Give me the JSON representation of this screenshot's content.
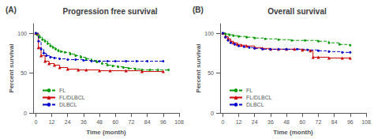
{
  "chart_data": [
    {
      "type": "step",
      "title": "Progression free survival",
      "annotations": [
        "(A)"
      ],
      "xlabel": "Time (month)",
      "ylabel": "Percent survival",
      "xlim": [
        -2,
        108
      ],
      "ylim": [
        0,
        112
      ],
      "xticks": [
        0,
        12,
        24,
        36,
        48,
        60,
        72,
        84,
        96,
        108
      ],
      "yticks": [
        0,
        50,
        100
      ],
      "grid": false,
      "legend": "lower left",
      "series": [
        {
          "name": "FL",
          "color": "#009900",
          "line_style": "dashed",
          "marker": "circle",
          "x": [
            0,
            1,
            3,
            5,
            7,
            9,
            11,
            13,
            15,
            17,
            19,
            22,
            26,
            30,
            34,
            38,
            42,
            46,
            50,
            54,
            58,
            62,
            66,
            70,
            75,
            80,
            86,
            92,
            100
          ],
          "values": [
            100,
            98,
            95,
            92,
            90,
            87,
            84,
            82,
            80,
            78,
            77,
            76,
            74,
            72,
            70,
            68,
            66,
            64,
            62,
            60,
            59,
            58,
            57,
            56,
            55,
            54,
            54,
            54,
            54
          ]
        },
        {
          "name": "FL/DLBCL",
          "color": "#cc0000",
          "line_style": "solid",
          "marker": "triangle",
          "x": [
            0,
            2,
            4,
            7,
            10,
            14,
            18,
            24,
            32,
            38,
            48,
            56,
            68,
            80,
            96
          ],
          "values": [
            100,
            82,
            72,
            65,
            62,
            60,
            57,
            55,
            54,
            54,
            53,
            53,
            53,
            52,
            52
          ]
        },
        {
          "name": "DLBCL",
          "color": "#0000cc",
          "line_style": "dashed",
          "marker": "circle",
          "x": [
            0,
            2,
            4,
            6,
            8,
            11,
            14,
            18,
            24,
            30,
            36,
            42,
            48,
            54,
            60,
            68,
            76,
            84,
            96
          ],
          "values": [
            100,
            90,
            80,
            75,
            72,
            70,
            69,
            68,
            67,
            67,
            66,
            65,
            65,
            65,
            65,
            65,
            65,
            65,
            65
          ]
        }
      ]
    },
    {
      "type": "step",
      "title": "Overall survival",
      "annotations": [
        "(B)"
      ],
      "xlabel": "Time (month)",
      "ylabel": "Percent survival",
      "xlim": [
        -2,
        108
      ],
      "ylim": [
        0,
        112
      ],
      "xticks": [
        0,
        12,
        24,
        36,
        48,
        60,
        72,
        84,
        96,
        108
      ],
      "yticks": [
        0,
        50,
        100
      ],
      "grid": false,
      "legend": "lower left",
      "series": [
        {
          "name": "FL",
          "color": "#009900",
          "line_style": "dashed",
          "marker": "circle",
          "x": [
            0,
            2,
            5,
            8,
            12,
            18,
            24,
            32,
            42,
            52,
            62,
            72,
            80,
            88,
            96
          ],
          "values": [
            100,
            99,
            98,
            97,
            96,
            95,
            94,
            93,
            92,
            91,
            91,
            90,
            88,
            86,
            85
          ]
        },
        {
          "name": "FL/DLBCL",
          "color": "#cc0000",
          "line_style": "solid",
          "marker": "triangle",
          "x": [
            0,
            2,
            4,
            6,
            8,
            11,
            14,
            18,
            24,
            30,
            36,
            42,
            48,
            54,
            60,
            66,
            68,
            72,
            80,
            90,
            96
          ],
          "values": [
            100,
            96,
            93,
            90,
            88,
            86,
            85,
            84,
            82,
            81,
            80,
            80,
            80,
            80,
            79,
            78,
            70,
            70,
            69,
            69,
            69
          ]
        },
        {
          "name": "DLBCL",
          "color": "#0000cc",
          "line_style": "dashed",
          "marker": "circle",
          "x": [
            0,
            2,
            4,
            6,
            9,
            12,
            16,
            20,
            24,
            30,
            36,
            42,
            48,
            56,
            64,
            72,
            80,
            90,
            96
          ],
          "values": [
            100,
            95,
            91,
            88,
            86,
            84,
            83,
            82,
            81,
            80,
            80,
            80,
            80,
            80,
            79,
            78,
            77,
            76,
            76
          ]
        }
      ]
    }
  ]
}
